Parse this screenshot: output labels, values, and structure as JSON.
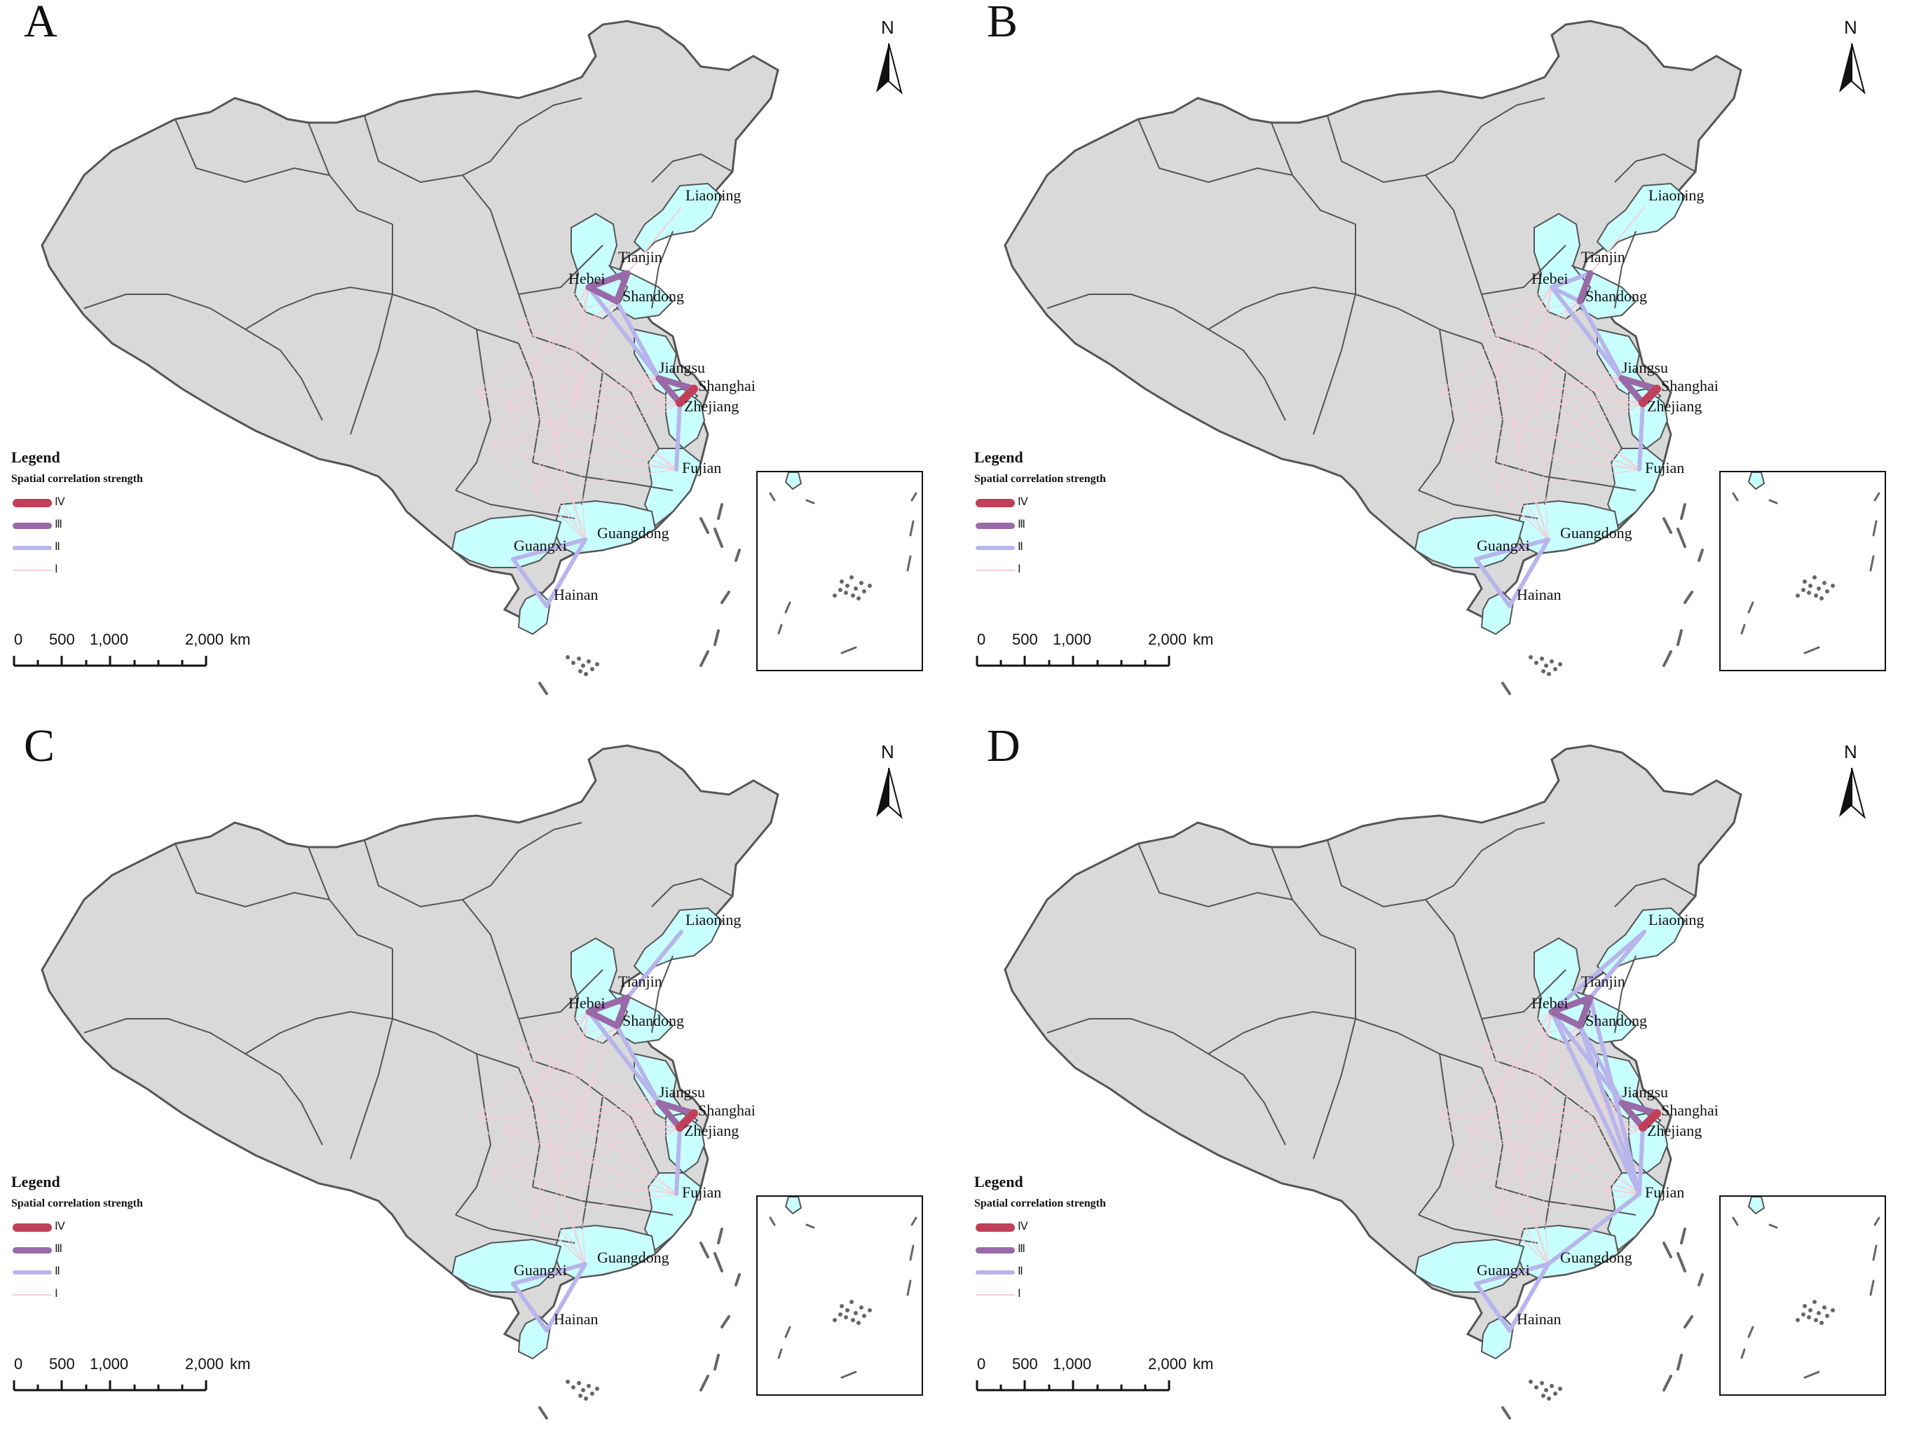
{
  "panels": [
    {
      "letter": "A",
      "variant": 0
    },
    {
      "letter": "B",
      "variant": 1
    },
    {
      "letter": "C",
      "variant": 2
    },
    {
      "letter": "D",
      "variant": 3
    }
  ],
  "north_label": "N",
  "legend": {
    "title": "Legend",
    "subtitle": "Spatial correlation strength",
    "classes": [
      {
        "label": "Ⅳ",
        "color": "#c0405a"
      },
      {
        "label": "Ⅲ",
        "color": "#9a6aa8"
      },
      {
        "label": "Ⅱ",
        "color": "#b8b4ec"
      },
      {
        "label": "Ⅰ",
        "color": "#f3cfd8"
      }
    ]
  },
  "scale_bar": {
    "labels": [
      "0",
      "500",
      "1,000",
      "2,000"
    ],
    "unit": "km"
  },
  "provinces": [
    "Liaoning",
    "Tianjin",
    "Hebei",
    "Shandong",
    "Jiangsu",
    "Shanghai",
    "Zhejiang",
    "Fujian",
    "Guangdong",
    "Guangxi",
    "Hainan"
  ],
  "colors": {
    "highlight_fill": "#c8ffff",
    "background_fill": "#d9d9d9",
    "border": "#555555"
  }
}
